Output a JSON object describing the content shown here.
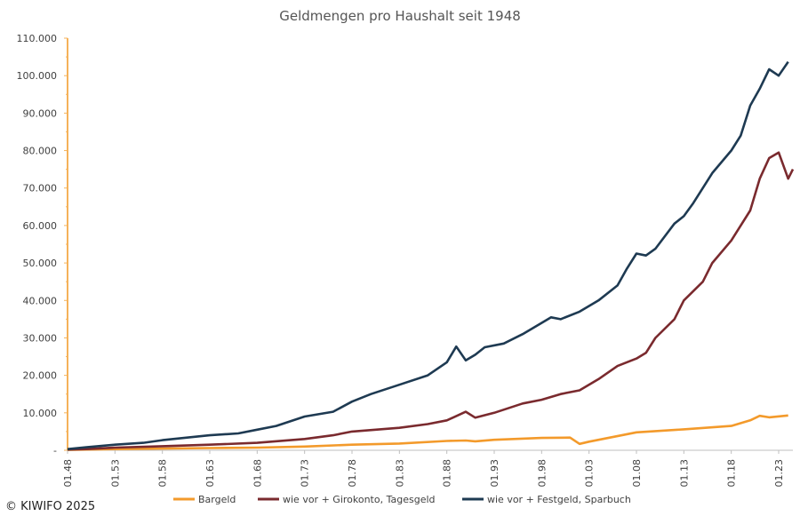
{
  "chart_data": {
    "type": "line",
    "title": "Geldmengen pro Haushalt seit 1948",
    "copyright": "© KIWIFO 2025",
    "ylim": [
      0,
      110000
    ],
    "y_ticks": [
      {
        "value": 0,
        "label": "-"
      },
      {
        "value": 10000,
        "label": "10.000"
      },
      {
        "value": 20000,
        "label": "20.000"
      },
      {
        "value": 30000,
        "label": "30.000"
      },
      {
        "value": 40000,
        "label": "40.000"
      },
      {
        "value": 50000,
        "label": "50.000"
      },
      {
        "value": 60000,
        "label": "60.000"
      },
      {
        "value": 70000,
        "label": "70.000"
      },
      {
        "value": 80000,
        "label": "80.000"
      },
      {
        "value": 90000,
        "label": "90.000"
      },
      {
        "value": 100000,
        "label": "100.000"
      },
      {
        "value": 110000,
        "label": "110.000"
      }
    ],
    "xlim": [
      1948,
      2024.5
    ],
    "x_ticks": [
      {
        "value": 1948,
        "label": "01.48"
      },
      {
        "value": 1953,
        "label": "01.53"
      },
      {
        "value": 1958,
        "label": "01.58"
      },
      {
        "value": 1963,
        "label": "01.63"
      },
      {
        "value": 1968,
        "label": "01.68"
      },
      {
        "value": 1973,
        "label": "01.73"
      },
      {
        "value": 1978,
        "label": "01.78"
      },
      {
        "value": 1983,
        "label": "01.83"
      },
      {
        "value": 1988,
        "label": "01.88"
      },
      {
        "value": 1993,
        "label": "01.93"
      },
      {
        "value": 1998,
        "label": "01.98"
      },
      {
        "value": 2003,
        "label": "01.03"
      },
      {
        "value": 2008,
        "label": "01.08"
      },
      {
        "value": 2013,
        "label": "01.13"
      },
      {
        "value": 2018,
        "label": "01.18"
      },
      {
        "value": 2023,
        "label": "01.23"
      }
    ],
    "legend_position": "bottom",
    "series": [
      {
        "name": "Bargeld",
        "color": "#f39a2b",
        "points": [
          [
            1948,
            100
          ],
          [
            1950,
            200
          ],
          [
            1953,
            300
          ],
          [
            1958,
            450
          ],
          [
            1963,
            600
          ],
          [
            1968,
            700
          ],
          [
            1973,
            1000
          ],
          [
            1978,
            1500
          ],
          [
            1983,
            1800
          ],
          [
            1988,
            2500
          ],
          [
            1990,
            2600
          ],
          [
            1991,
            2400
          ],
          [
            1993,
            2800
          ],
          [
            1998,
            3300
          ],
          [
            2001,
            3400
          ],
          [
            2002,
            1700
          ],
          [
            2003,
            2300
          ],
          [
            2008,
            4800
          ],
          [
            2013,
            5600
          ],
          [
            2018,
            6500
          ],
          [
            2020,
            8000
          ],
          [
            2021,
            9200
          ],
          [
            2022,
            8800
          ],
          [
            2024,
            9300
          ]
        ]
      },
      {
        "name": "wie vor + Girokonto, Tagesgeld",
        "color": "#7a2a2e",
        "points": [
          [
            1948,
            200
          ],
          [
            1950,
            300
          ],
          [
            1953,
            700
          ],
          [
            1958,
            1100
          ],
          [
            1963,
            1500
          ],
          [
            1968,
            2000
          ],
          [
            1973,
            3000
          ],
          [
            1976,
            4000
          ],
          [
            1978,
            5000
          ],
          [
            1983,
            6000
          ],
          [
            1986,
            7000
          ],
          [
            1988,
            8000
          ],
          [
            1990,
            10300
          ],
          [
            1991,
            8700
          ],
          [
            1993,
            10000
          ],
          [
            1996,
            12500
          ],
          [
            1998,
            13500
          ],
          [
            2000,
            15000
          ],
          [
            2002,
            16000
          ],
          [
            2004,
            19000
          ],
          [
            2006,
            22500
          ],
          [
            2008,
            24500
          ],
          [
            2009,
            26000
          ],
          [
            2010,
            30000
          ],
          [
            2012,
            35000
          ],
          [
            2013,
            40000
          ],
          [
            2015,
            45000
          ],
          [
            2016,
            50000
          ],
          [
            2018,
            56000
          ],
          [
            2020,
            64000
          ],
          [
            2021,
            72500
          ],
          [
            2022,
            78000
          ],
          [
            2023,
            79500
          ],
          [
            2024,
            72500
          ],
          [
            2025,
            75000
          ]
        ]
      },
      {
        "name": "wie vor + Festgeld, Sparbuch",
        "color": "#1e3a52",
        "points": [
          [
            1948,
            300
          ],
          [
            1950,
            800
          ],
          [
            1953,
            1500
          ],
          [
            1956,
            2000
          ],
          [
            1958,
            2700
          ],
          [
            1963,
            4000
          ],
          [
            1966,
            4500
          ],
          [
            1968,
            5500
          ],
          [
            1970,
            6500
          ],
          [
            1973,
            9000
          ],
          [
            1976,
            10300
          ],
          [
            1978,
            13000
          ],
          [
            1980,
            15000
          ],
          [
            1983,
            17500
          ],
          [
            1986,
            20000
          ],
          [
            1988,
            23500
          ],
          [
            1989,
            27700
          ],
          [
            1990,
            24000
          ],
          [
            1991,
            25500
          ],
          [
            1992,
            27500
          ],
          [
            1994,
            28500
          ],
          [
            1996,
            31000
          ],
          [
            1998,
            34000
          ],
          [
            1999,
            35500
          ],
          [
            2000,
            35000
          ],
          [
            2002,
            37000
          ],
          [
            2004,
            40000
          ],
          [
            2006,
            44000
          ],
          [
            2007,
            48500
          ],
          [
            2008,
            52500
          ],
          [
            2009,
            52000
          ],
          [
            2010,
            53800
          ],
          [
            2012,
            60500
          ],
          [
            2013,
            62500
          ],
          [
            2014,
            66000
          ],
          [
            2016,
            74000
          ],
          [
            2018,
            80000
          ],
          [
            2019,
            84000
          ],
          [
            2020,
            92000
          ],
          [
            2021,
            96500
          ],
          [
            2022,
            101700
          ],
          [
            2023,
            100000
          ],
          [
            2024,
            103700
          ]
        ]
      }
    ]
  }
}
